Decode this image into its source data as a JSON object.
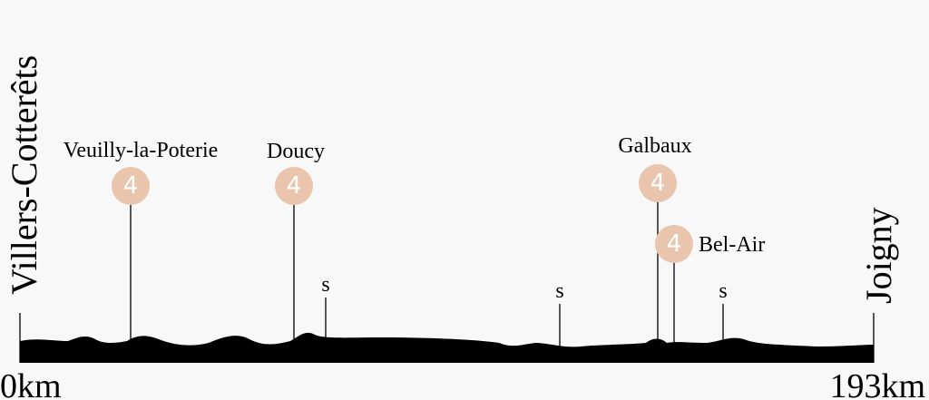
{
  "start": {
    "name": "Villers-Cotterêts",
    "distance": "0km"
  },
  "finish": {
    "name": "Joigny",
    "distance": "193km"
  },
  "climbs": [
    {
      "category": "4",
      "name": "Veuilly-la-Poterie"
    },
    {
      "category": "4",
      "name": "Doucy"
    },
    {
      "category": "4",
      "name": "Galbaux"
    },
    {
      "category": "4",
      "name": "Bel-Air"
    }
  ],
  "sprints": [
    "s",
    "s",
    "s"
  ]
}
